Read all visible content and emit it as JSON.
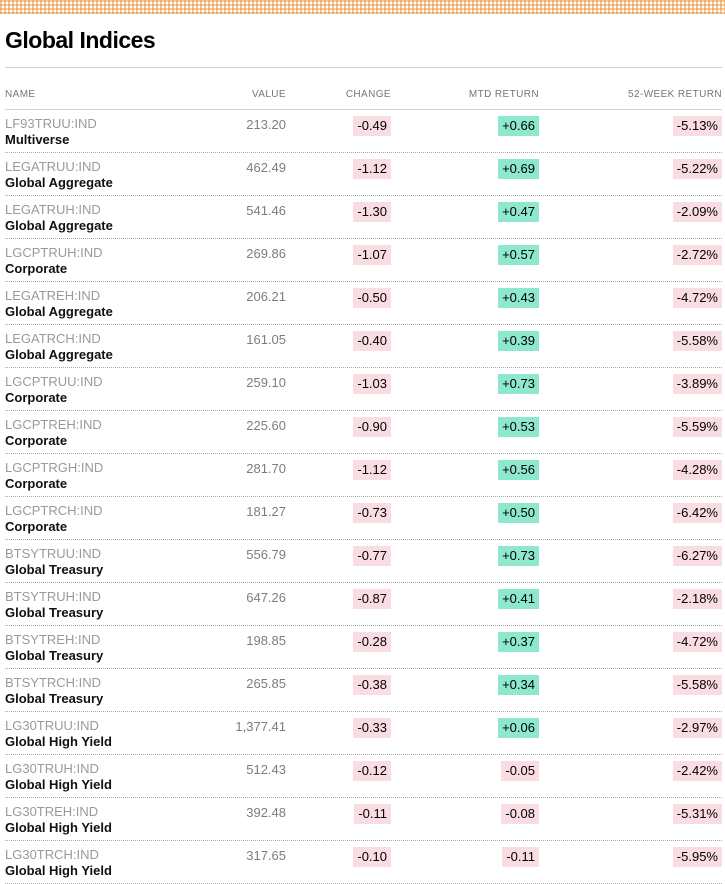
{
  "page": {
    "title": "Global Indices"
  },
  "colors": {
    "positive_badge_bg": "#8de8cd",
    "negative_badge_bg": "#fadde2",
    "band_orange": "#e68c32",
    "ticker_gray": "#9a9a9a",
    "value_gray": "#7d7d7d"
  },
  "table": {
    "columns": [
      "NAME",
      "VALUE",
      "CHANGE",
      "MTD RETURN",
      "52-WEEK RETURN"
    ],
    "rows": [
      {
        "ticker": "LF93TRUU:IND",
        "name": "Multiverse",
        "value": "213.20",
        "change": "-0.49",
        "mtd": "+0.66",
        "week52": "-5.13%"
      },
      {
        "ticker": "LEGATRUU:IND",
        "name": "Global Aggregate",
        "value": "462.49",
        "change": "-1.12",
        "mtd": "+0.69",
        "week52": "-5.22%"
      },
      {
        "ticker": "LEGATRUH:IND",
        "name": "Global Aggregate",
        "value": "541.46",
        "change": "-1.30",
        "mtd": "+0.47",
        "week52": "-2.09%"
      },
      {
        "ticker": "LGCPTRUH:IND",
        "name": "Corporate",
        "value": "269.86",
        "change": "-1.07",
        "mtd": "+0.57",
        "week52": "-2.72%"
      },
      {
        "ticker": "LEGATREH:IND",
        "name": "Global Aggregate",
        "value": "206.21",
        "change": "-0.50",
        "mtd": "+0.43",
        "week52": "-4.72%"
      },
      {
        "ticker": "LEGATRCH:IND",
        "name": "Global Aggregate",
        "value": "161.05",
        "change": "-0.40",
        "mtd": "+0.39",
        "week52": "-5.58%"
      },
      {
        "ticker": "LGCPTRUU:IND",
        "name": "Corporate",
        "value": "259.10",
        "change": "-1.03",
        "mtd": "+0.73",
        "week52": "-3.89%"
      },
      {
        "ticker": "LGCPTREH:IND",
        "name": "Corporate",
        "value": "225.60",
        "change": "-0.90",
        "mtd": "+0.53",
        "week52": "-5.59%"
      },
      {
        "ticker": "LGCPTRGH:IND",
        "name": "Corporate",
        "value": "281.70",
        "change": "-1.12",
        "mtd": "+0.56",
        "week52": "-4.28%"
      },
      {
        "ticker": "LGCPTRCH:IND",
        "name": "Corporate",
        "value": "181.27",
        "change": "-0.73",
        "mtd": "+0.50",
        "week52": "-6.42%"
      },
      {
        "ticker": "BTSYTRUU:IND",
        "name": "Global Treasury",
        "value": "556.79",
        "change": "-0.77",
        "mtd": "+0.73",
        "week52": "-6.27%"
      },
      {
        "ticker": "BTSYTRUH:IND",
        "name": "Global Treasury",
        "value": "647.26",
        "change": "-0.87",
        "mtd": "+0.41",
        "week52": "-2.18%"
      },
      {
        "ticker": "BTSYTREH:IND",
        "name": "Global Treasury",
        "value": "198.85",
        "change": "-0.28",
        "mtd": "+0.37",
        "week52": "-4.72%"
      },
      {
        "ticker": "BTSYTRCH:IND",
        "name": "Global Treasury",
        "value": "265.85",
        "change": "-0.38",
        "mtd": "+0.34",
        "week52": "-5.58%"
      },
      {
        "ticker": "LG30TRUU:IND",
        "name": "Global High Yield",
        "value": "1,377.41",
        "change": "-0.33",
        "mtd": "+0.06",
        "week52": "-2.97%"
      },
      {
        "ticker": "LG30TRUH:IND",
        "name": "Global High Yield",
        "value": "512.43",
        "change": "-0.12",
        "mtd": "-0.05",
        "week52": "-2.42%"
      },
      {
        "ticker": "LG30TREH:IND",
        "name": "Global High Yield",
        "value": "392.48",
        "change": "-0.11",
        "mtd": "-0.08",
        "week52": "-5.31%"
      },
      {
        "ticker": "LG30TRCH:IND",
        "name": "Global High Yield",
        "value": "317.65",
        "change": "-0.10",
        "mtd": "-0.11",
        "week52": "-5.95%"
      }
    ]
  }
}
